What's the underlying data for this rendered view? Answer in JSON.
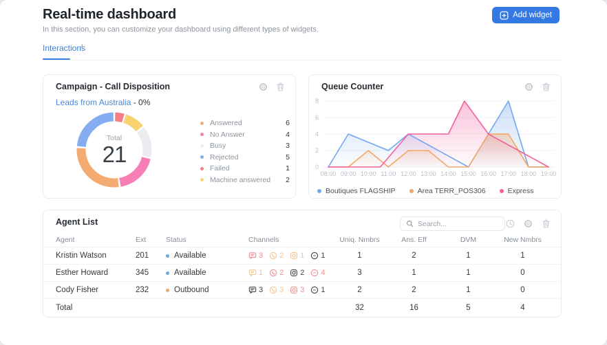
{
  "page": {
    "title": "Real-time dashboard",
    "subtitle": "In this section, you can customize your dashboard using different types of widgets.",
    "add_widget_label": "Add widget"
  },
  "tabs": {
    "active_label": "Interactions",
    "add_label": "+"
  },
  "colors": {
    "accent_blue": "#3a7fe0",
    "button_blue": "#3478e3",
    "link_blue": "#4a87d8",
    "status_available": "#6ba8ea",
    "status_outbound": "#f2a765"
  },
  "campaign_widget": {
    "title": "Campaign - Call Disposition",
    "filter_link": "Leads from Australia",
    "filter_suffix": " - 0%",
    "chart_data": {
      "type": "pie",
      "title": "Campaign - Call Disposition",
      "center_label": "Total",
      "center_value": "21",
      "total": 21,
      "legend_position": "right",
      "legend": [
        {
          "label": "Answered",
          "value": 6,
          "color": "#f4ab72"
        },
        {
          "label": "No Answer",
          "value": 4,
          "color": "#f87fb6"
        },
        {
          "label": "Busy",
          "value": 3,
          "color": "#ebecf0"
        },
        {
          "label": "Rejected",
          "value": 5,
          "color": "#84adf2"
        },
        {
          "label": "Failed",
          "value": 1,
          "color": "#f47e84"
        },
        {
          "label": "Machine answered",
          "value": 2,
          "color": "#f8d36f"
        }
      ],
      "segments_clockwise_from_top": [
        {
          "label": "Failed",
          "value": 1,
          "color": "#f47e84"
        },
        {
          "label": "Machine answered",
          "value": 2,
          "color": "#f8d36f"
        },
        {
          "label": "Busy",
          "value": 3,
          "color": "#ebecf0"
        },
        {
          "label": "No Answer",
          "value": 4,
          "color": "#f87fb6"
        },
        {
          "label": "Answered",
          "value": 6,
          "color": "#f4ab72"
        },
        {
          "label": "Rejected",
          "value": 5,
          "color": "#84adf2"
        }
      ]
    }
  },
  "queue_widget": {
    "title": "Queue Counter",
    "chart_data": {
      "type": "area",
      "title": "Queue Counter",
      "x_ticks": [
        "08:00",
        "09:00",
        "10:00",
        "11:00",
        "12:00",
        "13:00",
        "14:00",
        "15:00",
        "16:00",
        "17:00",
        "18:00",
        "19:00"
      ],
      "x_domain_hours": [
        8,
        19
      ],
      "y_ticks": [
        0,
        2,
        4,
        6,
        8
      ],
      "ylim": [
        0,
        8
      ],
      "grid": true,
      "legend_position": "bottom",
      "series": [
        {
          "name": "Boutiques FLAGSHIP",
          "color": "#74a7ef",
          "points": [
            [
              8,
              0
            ],
            [
              9,
              4
            ],
            [
              11,
              2
            ],
            [
              12,
              4
            ],
            [
              15,
              0
            ],
            [
              16,
              4
            ],
            [
              17,
              8
            ],
            [
              18,
              0
            ],
            [
              19,
              0
            ]
          ]
        },
        {
          "name": "Area TERR_POS306",
          "color": "#f4a763",
          "points": [
            [
              8,
              0
            ],
            [
              9,
              0
            ],
            [
              10,
              2
            ],
            [
              11,
              0
            ],
            [
              12,
              2
            ],
            [
              13,
              2
            ],
            [
              14,
              0
            ],
            [
              15,
              0
            ],
            [
              16,
              4
            ],
            [
              17,
              4
            ],
            [
              18,
              0
            ],
            [
              19,
              0
            ]
          ]
        },
        {
          "name": "Express",
          "color": "#f2609e",
          "points": [
            [
              8,
              0
            ],
            [
              10.6,
              0
            ],
            [
              12,
              4
            ],
            [
              14,
              4
            ],
            [
              14.8,
              8
            ],
            [
              16,
              4
            ],
            [
              19,
              0
            ]
          ]
        }
      ]
    }
  },
  "agent_list": {
    "title": "Agent List",
    "search_placeholder": "Search...",
    "columns": [
      "Agent",
      "Ext",
      "Status",
      "Channels",
      "Uniq. Nmbrs",
      "Ans. Eff",
      "DVM",
      "New Nmbrs"
    ],
    "rows": [
      {
        "agent": "Kristin Watson",
        "ext": "201",
        "status": "Available",
        "status_color": "#6ba8ea",
        "channels": [
          {
            "type": "chat",
            "count": 3,
            "color": "#ee8f90"
          },
          {
            "type": "whatsapp",
            "count": 2,
            "color": "#f5c493"
          },
          {
            "type": "instagram",
            "count": 1,
            "color": "#f5c493"
          },
          {
            "type": "messenger",
            "count": 1,
            "color": "#40454c"
          }
        ],
        "uniq_nmbrs": "1",
        "ans_eff": "2",
        "dvm": "1",
        "new_nmbrs": "1"
      },
      {
        "agent": "Esther Howard",
        "ext": "345",
        "status": "Available",
        "status_color": "#6ba8ea",
        "channels": [
          {
            "type": "chat",
            "count": 1,
            "color": "#f5c493"
          },
          {
            "type": "whatsapp",
            "count": 2,
            "color": "#ee8f90"
          },
          {
            "type": "instagram",
            "count": 2,
            "color": "#40454c"
          },
          {
            "type": "messenger",
            "count": 4,
            "color": "#ee8f90"
          }
        ],
        "uniq_nmbrs": "3",
        "ans_eff": "1",
        "dvm": "1",
        "new_nmbrs": "0"
      },
      {
        "agent": "Cody Fisher",
        "ext": "232",
        "status": "Outbound",
        "status_color": "#f2a765",
        "channels": [
          {
            "type": "chat",
            "count": 3,
            "color": "#40454c"
          },
          {
            "type": "whatsapp",
            "count": 3,
            "color": "#f5c493"
          },
          {
            "type": "instagram",
            "count": 3,
            "color": "#ee8f90"
          },
          {
            "type": "messenger",
            "count": 1,
            "color": "#40454c"
          }
        ],
        "uniq_nmbrs": "2",
        "ans_eff": "2",
        "dvm": "1",
        "new_nmbrs": "0"
      }
    ],
    "total_row": {
      "label": "Total",
      "uniq_nmbrs": "32",
      "ans_eff": "16",
      "dvm": "5",
      "new_nmbrs": "4"
    }
  }
}
